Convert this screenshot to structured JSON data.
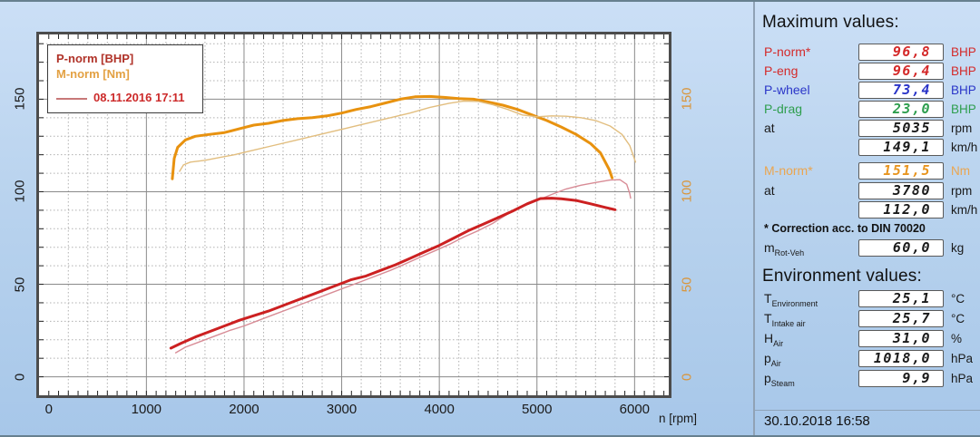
{
  "chart": {
    "legend": {
      "power_label": "P-norm [BHP]",
      "torque_label": "M-norm [Nm]",
      "run_date": "08.11.2016 17:11"
    },
    "x_axis_label": "n [rpm]",
    "x_ticks": [
      0,
      1000,
      2000,
      3000,
      4000,
      5000,
      6000
    ],
    "left_ticks": [
      0,
      50,
      100,
      150
    ],
    "right_ticks": [
      0,
      50,
      100,
      150
    ]
  },
  "chart_data": {
    "type": "line",
    "xlabel": "n [rpm]",
    "x_range": [
      -100,
      6350
    ],
    "y_range": [
      -10,
      185
    ],
    "grid": {
      "x_minor": 200,
      "x_major": 1000,
      "y_minor": 10,
      "y_major": 50,
      "x_tick": 100,
      "y_tick": 10
    },
    "legend_position": "top-left",
    "series": [
      {
        "name": "M-norm 30.10.2018",
        "unit": "Nm",
        "color": "curve_torque_ref_key",
        "colorKey": "curve_torque",
        "width": 3,
        "points": [
          [
            1265,
            107
          ],
          [
            1285,
            118
          ],
          [
            1320,
            124
          ],
          [
            1400,
            128
          ],
          [
            1500,
            130
          ],
          [
            1650,
            131
          ],
          [
            1800,
            132
          ],
          [
            1950,
            134
          ],
          [
            2100,
            136
          ],
          [
            2250,
            137
          ],
          [
            2400,
            138.5
          ],
          [
            2550,
            139.5
          ],
          [
            2700,
            140
          ],
          [
            2850,
            141
          ],
          [
            3000,
            142.5
          ],
          [
            3150,
            144.5
          ],
          [
            3300,
            146
          ],
          [
            3450,
            148
          ],
          [
            3600,
            150
          ],
          [
            3750,
            151.3
          ],
          [
            3900,
            151.5
          ],
          [
            4050,
            151
          ],
          [
            4200,
            150.3
          ],
          [
            4350,
            150
          ],
          [
            4500,
            148.5
          ],
          [
            4650,
            146.8
          ],
          [
            4800,
            144.5
          ],
          [
            4950,
            141.5
          ],
          [
            5100,
            138.5
          ],
          [
            5250,
            135
          ],
          [
            5400,
            131
          ],
          [
            5550,
            126
          ],
          [
            5650,
            121
          ],
          [
            5740,
            112
          ],
          [
            5770,
            107.5
          ]
        ]
      },
      {
        "name": "M-norm 08.11.2016",
        "unit": "Nm",
        "color": "ref",
        "colorKey": "curve_torque_ref",
        "width": 1.4,
        "points": [
          [
            1340,
            111
          ],
          [
            1380,
            114.5
          ],
          [
            1450,
            116
          ],
          [
            1600,
            117
          ],
          [
            1750,
            118.5
          ],
          [
            1900,
            120
          ],
          [
            2100,
            122.5
          ],
          [
            2300,
            125
          ],
          [
            2500,
            127.5
          ],
          [
            2700,
            130
          ],
          [
            2900,
            132.5
          ],
          [
            3100,
            135
          ],
          [
            3300,
            137.5
          ],
          [
            3500,
            140
          ],
          [
            3700,
            142.5
          ],
          [
            3900,
            145.5
          ],
          [
            4100,
            147.8
          ],
          [
            4250,
            149
          ],
          [
            4400,
            148.8
          ],
          [
            4550,
            147
          ],
          [
            4700,
            144.5
          ],
          [
            4850,
            141.5
          ],
          [
            5000,
            140.5
          ],
          [
            5150,
            141
          ],
          [
            5300,
            140.8
          ],
          [
            5450,
            140
          ],
          [
            5600,
            138.5
          ],
          [
            5750,
            135.5
          ],
          [
            5870,
            131
          ],
          [
            5950,
            125
          ],
          [
            6010,
            116
          ]
        ]
      },
      {
        "name": "P-norm 08.11.2016",
        "unit": "BHP",
        "color": "ref",
        "colorKey": "curve_power_ref",
        "width": 1.4,
        "points": [
          [
            1300,
            13
          ],
          [
            1400,
            16
          ],
          [
            1550,
            19
          ],
          [
            1700,
            22
          ],
          [
            1850,
            25
          ],
          [
            2000,
            27.5
          ],
          [
            2150,
            30.5
          ],
          [
            2300,
            33.5
          ],
          [
            2450,
            36.5
          ],
          [
            2600,
            39.5
          ],
          [
            2750,
            42.5
          ],
          [
            2900,
            45.5
          ],
          [
            3050,
            48.5
          ],
          [
            3200,
            51.5
          ],
          [
            3350,
            54.5
          ],
          [
            3500,
            57.5
          ],
          [
            3650,
            61
          ],
          [
            3800,
            64.5
          ],
          [
            3950,
            68
          ],
          [
            4100,
            71.5
          ],
          [
            4250,
            75.5
          ],
          [
            4400,
            79
          ],
          [
            4550,
            83
          ],
          [
            4700,
            88
          ],
          [
            4850,
            92
          ],
          [
            5000,
            95.2
          ],
          [
            5150,
            98.5
          ],
          [
            5300,
            101.5
          ],
          [
            5450,
            103.5
          ],
          [
            5600,
            105
          ],
          [
            5750,
            106.3
          ],
          [
            5850,
            106.5
          ],
          [
            5920,
            104
          ],
          [
            5950,
            99
          ],
          [
            5960,
            96.5
          ]
        ]
      },
      {
        "name": "P-norm 30.10.2018",
        "unit": "BHP",
        "color": "main",
        "colorKey": "curve_power",
        "width": 3,
        "points": [
          [
            1250,
            15.5
          ],
          [
            1350,
            18
          ],
          [
            1500,
            21.5
          ],
          [
            1650,
            24.5
          ],
          [
            1800,
            27.5
          ],
          [
            1950,
            30.5
          ],
          [
            2100,
            33
          ],
          [
            2250,
            35.5
          ],
          [
            2400,
            38.5
          ],
          [
            2550,
            41.5
          ],
          [
            2700,
            44.5
          ],
          [
            2850,
            47.5
          ],
          [
            3000,
            50.5
          ],
          [
            3100,
            52.5
          ],
          [
            3250,
            54.5
          ],
          [
            3400,
            57.5
          ],
          [
            3550,
            60.5
          ],
          [
            3700,
            64
          ],
          [
            3850,
            67.5
          ],
          [
            4000,
            71
          ],
          [
            4150,
            75
          ],
          [
            4300,
            79
          ],
          [
            4450,
            82.5
          ],
          [
            4600,
            86
          ],
          [
            4750,
            89.5
          ],
          [
            4900,
            93.5
          ],
          [
            5035,
            96.3
          ],
          [
            5150,
            96.5
          ],
          [
            5250,
            96.2
          ],
          [
            5400,
            95.3
          ],
          [
            5550,
            93.5
          ],
          [
            5700,
            91.5
          ],
          [
            5800,
            90.3
          ]
        ]
      }
    ]
  },
  "panel": {
    "max_title": "Maximum values:",
    "max_rows": [
      {
        "label": "P-norm*",
        "value": "96,8",
        "unit": "BHP",
        "color": "red"
      },
      {
        "label": "P-eng",
        "value": "96,4",
        "unit": "BHP",
        "color": "red"
      },
      {
        "label": "P-wheel",
        "value": "73,4",
        "unit": "BHP",
        "color": "blue"
      },
      {
        "label": "P-drag",
        "value": "23,0",
        "unit": "BHP",
        "color": "green"
      },
      {
        "label": "at",
        "value": "5035",
        "unit": "rpm",
        "color": "black"
      },
      {
        "label": "",
        "value": "149,1",
        "unit": "km/h",
        "color": "black"
      }
    ],
    "torque_rows": [
      {
        "label": "M-norm*",
        "value": "151,5",
        "unit": "Nm",
        "color": "orange"
      },
      {
        "label": "at",
        "value": "3780",
        "unit": "rpm",
        "color": "black"
      },
      {
        "label": "",
        "value": "112,0",
        "unit": "km/h",
        "color": "black"
      }
    ],
    "correction_note": "* Correction acc. to DIN 70020",
    "mass_rows": [
      {
        "label": "m",
        "sub": "Rot-Veh",
        "value": "60,0",
        "unit": "kg",
        "color": "black"
      }
    ],
    "env_title": "Environment values:",
    "env_rows": [
      {
        "label": "T",
        "sub": "Environment",
        "value": "25,1",
        "unit": "°C",
        "color": "black"
      },
      {
        "label": "T",
        "sub": "Intake air",
        "value": "25,7",
        "unit": "°C",
        "color": "black"
      },
      {
        "label": "H",
        "sub": "Air",
        "value": "31,0",
        "unit": "%",
        "color": "black"
      },
      {
        "label": "p",
        "sub": "Air",
        "value": "1018,0",
        "unit": "hPa",
        "color": "black"
      },
      {
        "label": "p",
        "sub": "Steam",
        "value": "9,9",
        "unit": "hPa",
        "color": "black"
      }
    ],
    "datetime": "30.10.2018  16:58"
  },
  "colors": {
    "red": "#d42a2a",
    "blue": "#2a35c8",
    "green": "#2e9e4e",
    "orange": "#e8951f",
    "orange_label": "#eba54f",
    "black": "#1a1a1a",
    "curve_torque": "#e8920f",
    "curve_torque_ref": "#e2be7f",
    "curve_power": "#cc2021",
    "curve_power_ref": "#d88c96",
    "grid_major": "#8a8a8a",
    "grid_minor": "#b0b0b0",
    "axis_orange": "#d9953b"
  }
}
